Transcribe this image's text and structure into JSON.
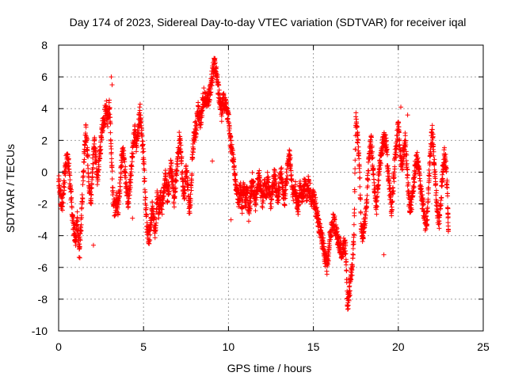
{
  "chart_data": {
    "type": "scatter",
    "title": "Day 174 of 2023, Sidereal Day-to-day VTEC variation (SDTVAR) for receiver iqal",
    "xlabel": "GPS time / hours",
    "ylabel": "SDTVAR / TECUs",
    "xlim": [
      0,
      25
    ],
    "ylim": [
      -10,
      8
    ],
    "x_ticks": [
      0,
      5,
      10,
      15,
      20,
      25
    ],
    "y_ticks": [
      -10,
      -8,
      -6,
      -4,
      -2,
      0,
      2,
      4,
      6,
      8
    ],
    "x_tick_labels": [
      "0",
      "5",
      "10",
      "15",
      "20",
      "25"
    ],
    "y_tick_labels": [
      "-10",
      "-8",
      "-6",
      "-4",
      "-2",
      "0",
      "2",
      "4",
      "6",
      "8"
    ],
    "grid": true,
    "marker": "+",
    "color": "#ff0000",
    "series": [
      {
        "name": "SDTVAR",
        "trace": [
          [
            0.0,
            -0.5
          ],
          [
            0.1,
            -1.5
          ],
          [
            0.2,
            -2.2
          ],
          [
            0.3,
            -1.2
          ],
          [
            0.4,
            0.4
          ],
          [
            0.5,
            0.9
          ],
          [
            0.6,
            0.3
          ],
          [
            0.7,
            -1.0
          ],
          [
            0.8,
            -2.5
          ],
          [
            0.9,
            -3.5
          ],
          [
            1.0,
            -4.2
          ],
          [
            1.1,
            -3.0
          ],
          [
            1.2,
            -5.0
          ],
          [
            1.3,
            -3.8
          ],
          [
            1.4,
            -1.5
          ],
          [
            1.5,
            1.0
          ],
          [
            1.6,
            2.5
          ],
          [
            1.7,
            1.2
          ],
          [
            1.8,
            -0.8
          ],
          [
            1.9,
            -2.0
          ],
          [
            2.0,
            0.3
          ],
          [
            2.1,
            1.8
          ],
          [
            2.2,
            0.7
          ],
          [
            2.3,
            -0.5
          ],
          [
            2.4,
            0.8
          ],
          [
            2.5,
            2.0
          ],
          [
            2.6,
            3.0
          ],
          [
            2.7,
            3.5
          ],
          [
            2.8,
            4.1
          ],
          [
            2.9,
            3.2
          ],
          [
            3.0,
            4.2
          ],
          [
            3.1,
            1.5
          ],
          [
            3.2,
            -1.5
          ],
          [
            3.3,
            -2.4
          ],
          [
            3.4,
            -1.8
          ],
          [
            3.5,
            -2.2
          ],
          [
            3.6,
            -1.0
          ],
          [
            3.7,
            0.8
          ],
          [
            3.8,
            1.5
          ],
          [
            3.9,
            0.2
          ],
          [
            4.0,
            -1.2
          ],
          [
            4.1,
            -1.8
          ],
          [
            4.2,
            -0.8
          ],
          [
            4.3,
            0.5
          ],
          [
            4.4,
            1.8
          ],
          [
            4.5,
            2.5
          ],
          [
            4.6,
            1.5
          ],
          [
            4.7,
            3.0
          ],
          [
            4.8,
            3.8
          ],
          [
            4.9,
            2.2
          ],
          [
            5.0,
            1.0
          ],
          [
            5.1,
            -1.5
          ],
          [
            5.2,
            -3.5
          ],
          [
            5.3,
            -4.2
          ],
          [
            5.4,
            -3.8
          ],
          [
            5.5,
            -2.2
          ],
          [
            5.6,
            -3.0
          ],
          [
            5.7,
            -3.8
          ],
          [
            5.8,
            -1.2
          ],
          [
            5.9,
            -2.5
          ],
          [
            6.0,
            -1.5
          ],
          [
            6.1,
            -2.2
          ],
          [
            6.2,
            -1.2
          ],
          [
            6.3,
            -0.2
          ],
          [
            6.4,
            -1.5
          ],
          [
            6.5,
            -0.8
          ],
          [
            6.6,
            0.5
          ],
          [
            6.7,
            -0.5
          ],
          [
            6.8,
            -1.8
          ],
          [
            6.9,
            -0.5
          ],
          [
            7.0,
            0.8
          ],
          [
            7.1,
            2.0
          ],
          [
            7.2,
            1.5
          ],
          [
            7.3,
            -0.5
          ],
          [
            7.4,
            -1.8
          ],
          [
            7.5,
            0.2
          ],
          [
            7.6,
            -0.6
          ],
          [
            7.7,
            -2.5
          ],
          [
            7.8,
            -1.0
          ],
          [
            7.9,
            1.5
          ],
          [
            8.0,
            2.5
          ],
          [
            8.1,
            2.8
          ],
          [
            8.2,
            4.0
          ],
          [
            8.3,
            3.2
          ],
          [
            8.4,
            3.5
          ],
          [
            8.5,
            4.5
          ],
          [
            8.6,
            4.8
          ],
          [
            8.7,
            4.2
          ],
          [
            8.8,
            4.6
          ],
          [
            8.9,
            5.0
          ],
          [
            9.0,
            5.8
          ],
          [
            9.1,
            6.5
          ],
          [
            9.2,
            7.0
          ],
          [
            9.3,
            6.2
          ],
          [
            9.4,
            5.2
          ],
          [
            9.5,
            4.4
          ],
          [
            9.6,
            4.0
          ],
          [
            9.7,
            4.5
          ],
          [
            9.8,
            4.2
          ],
          [
            9.9,
            3.8
          ],
          [
            10.0,
            3.5
          ],
          [
            10.1,
            2.0
          ],
          [
            10.2,
            1.2
          ],
          [
            10.3,
            0.8
          ],
          [
            10.4,
            -0.5
          ],
          [
            10.5,
            -1.2
          ],
          [
            10.6,
            -1.8
          ],
          [
            10.7,
            -1.0
          ],
          [
            10.8,
            -2.2
          ],
          [
            10.9,
            -0.8
          ],
          [
            11.0,
            -2.0
          ],
          [
            11.1,
            -1.0
          ],
          [
            11.2,
            -2.8
          ],
          [
            11.3,
            -1.5
          ],
          [
            11.4,
            -0.5
          ],
          [
            11.5,
            -1.2
          ],
          [
            11.6,
            -2.0
          ],
          [
            11.7,
            -1.0
          ],
          [
            11.8,
            -0.3
          ],
          [
            11.9,
            -1.2
          ],
          [
            12.0,
            -1.8
          ],
          [
            12.1,
            -0.8
          ],
          [
            12.2,
            -1.5
          ],
          [
            12.3,
            -0.5
          ],
          [
            12.4,
            -1.2
          ],
          [
            12.5,
            -2.0
          ],
          [
            12.6,
            -1.0
          ],
          [
            12.7,
            -0.2
          ],
          [
            12.8,
            -1.0
          ],
          [
            12.9,
            -1.8
          ],
          [
            13.0,
            -0.8
          ],
          [
            13.1,
            0.2
          ],
          [
            13.2,
            -1.0
          ],
          [
            13.3,
            -1.8
          ],
          [
            13.4,
            -0.6
          ],
          [
            13.5,
            0.5
          ],
          [
            13.6,
            1.2
          ],
          [
            13.7,
            -0.5
          ],
          [
            13.8,
            -1.5
          ],
          [
            13.9,
            -0.8
          ],
          [
            14.0,
            -1.6
          ],
          [
            14.1,
            -2.2
          ],
          [
            14.2,
            -1.0
          ],
          [
            14.3,
            -1.5
          ],
          [
            14.4,
            -1.2
          ],
          [
            14.5,
            -0.8
          ],
          [
            14.6,
            -1.4
          ],
          [
            14.7,
            -0.8
          ],
          [
            14.8,
            -1.2
          ],
          [
            14.9,
            -1.8
          ],
          [
            15.0,
            -1.6
          ],
          [
            15.1,
            -2.0
          ],
          [
            15.2,
            -2.6
          ],
          [
            15.3,
            -3.2
          ],
          [
            15.4,
            -3.6
          ],
          [
            15.5,
            -4.2
          ],
          [
            15.6,
            -4.8
          ],
          [
            15.7,
            -5.5
          ],
          [
            15.8,
            -5.9
          ],
          [
            15.9,
            -5.0
          ],
          [
            16.0,
            -3.8
          ],
          [
            16.1,
            -3.4
          ],
          [
            16.2,
            -3.0
          ],
          [
            16.3,
            -3.6
          ],
          [
            16.4,
            -4.0
          ],
          [
            16.5,
            -4.4
          ],
          [
            16.6,
            -4.8
          ],
          [
            16.7,
            -5.0
          ],
          [
            16.8,
            -4.6
          ],
          [
            16.9,
            -4.8
          ],
          [
            17.0,
            -8.2
          ],
          [
            17.1,
            -7.8
          ],
          [
            17.2,
            -6.8
          ],
          [
            17.3,
            -6.0
          ],
          [
            17.4,
            -3.5
          ],
          [
            17.5,
            3.5
          ],
          [
            17.6,
            2.2
          ],
          [
            17.7,
            0.8
          ],
          [
            17.8,
            -3.0
          ],
          [
            17.9,
            -4.2
          ],
          [
            18.0,
            -3.2
          ],
          [
            18.1,
            -2.5
          ],
          [
            18.2,
            -0.5
          ],
          [
            18.3,
            1.2
          ],
          [
            18.4,
            2.0
          ],
          [
            18.5,
            0.5
          ],
          [
            18.6,
            -1.2
          ],
          [
            18.7,
            -2.5
          ],
          [
            18.8,
            -0.8
          ],
          [
            18.9,
            0.3
          ],
          [
            19.0,
            1.2
          ],
          [
            19.1,
            1.8
          ],
          [
            19.2,
            2.2
          ],
          [
            19.3,
            1.5
          ],
          [
            19.4,
            0.0
          ],
          [
            19.5,
            -1.2
          ],
          [
            19.6,
            -2.2
          ],
          [
            19.7,
            -1.0
          ],
          [
            19.8,
            0.8
          ],
          [
            19.9,
            2.0
          ],
          [
            20.0,
            2.8
          ],
          [
            20.1,
            1.5
          ],
          [
            20.2,
            0.3
          ],
          [
            20.3,
            1.2
          ],
          [
            20.4,
            2.0
          ],
          [
            20.5,
            0.5
          ],
          [
            20.6,
            -1.5
          ],
          [
            20.7,
            -2.2
          ],
          [
            20.8,
            -1.8
          ],
          [
            20.9,
            -0.8
          ],
          [
            21.0,
            0.3
          ],
          [
            21.1,
            0.8
          ],
          [
            21.2,
            0.2
          ],
          [
            21.3,
            -0.8
          ],
          [
            21.4,
            -1.8
          ],
          [
            21.5,
            -2.5
          ],
          [
            21.6,
            -3.3
          ],
          [
            21.7,
            -2.8
          ],
          [
            21.8,
            -0.5
          ],
          [
            21.9,
            1.5
          ],
          [
            22.0,
            2.5
          ],
          [
            22.1,
            1.0
          ],
          [
            22.2,
            -1.0
          ],
          [
            22.3,
            -2.5
          ],
          [
            22.4,
            -3.2
          ],
          [
            22.5,
            -1.8
          ],
          [
            22.6,
            -0.2
          ],
          [
            22.7,
            1.2
          ],
          [
            22.8,
            0.5
          ],
          [
            22.9,
            -1.5
          ],
          [
            22.95,
            -3.6
          ]
        ],
        "extra_points": [
          [
            3.1,
            6.0
          ],
          [
            3.15,
            5.5
          ],
          [
            9.05,
            0.7
          ],
          [
            20.15,
            4.1
          ],
          [
            20.55,
            3.6
          ],
          [
            19.15,
            -5.2
          ],
          [
            10.15,
            -3.0
          ],
          [
            9.6,
            3.2
          ],
          [
            8.55,
            5.3
          ],
          [
            2.05,
            -4.6
          ],
          [
            1.25,
            -5.4
          ],
          [
            4.35,
            -2.9
          ],
          [
            17.05,
            -8.6
          ],
          [
            17.1,
            -8.1
          ]
        ]
      }
    ]
  }
}
